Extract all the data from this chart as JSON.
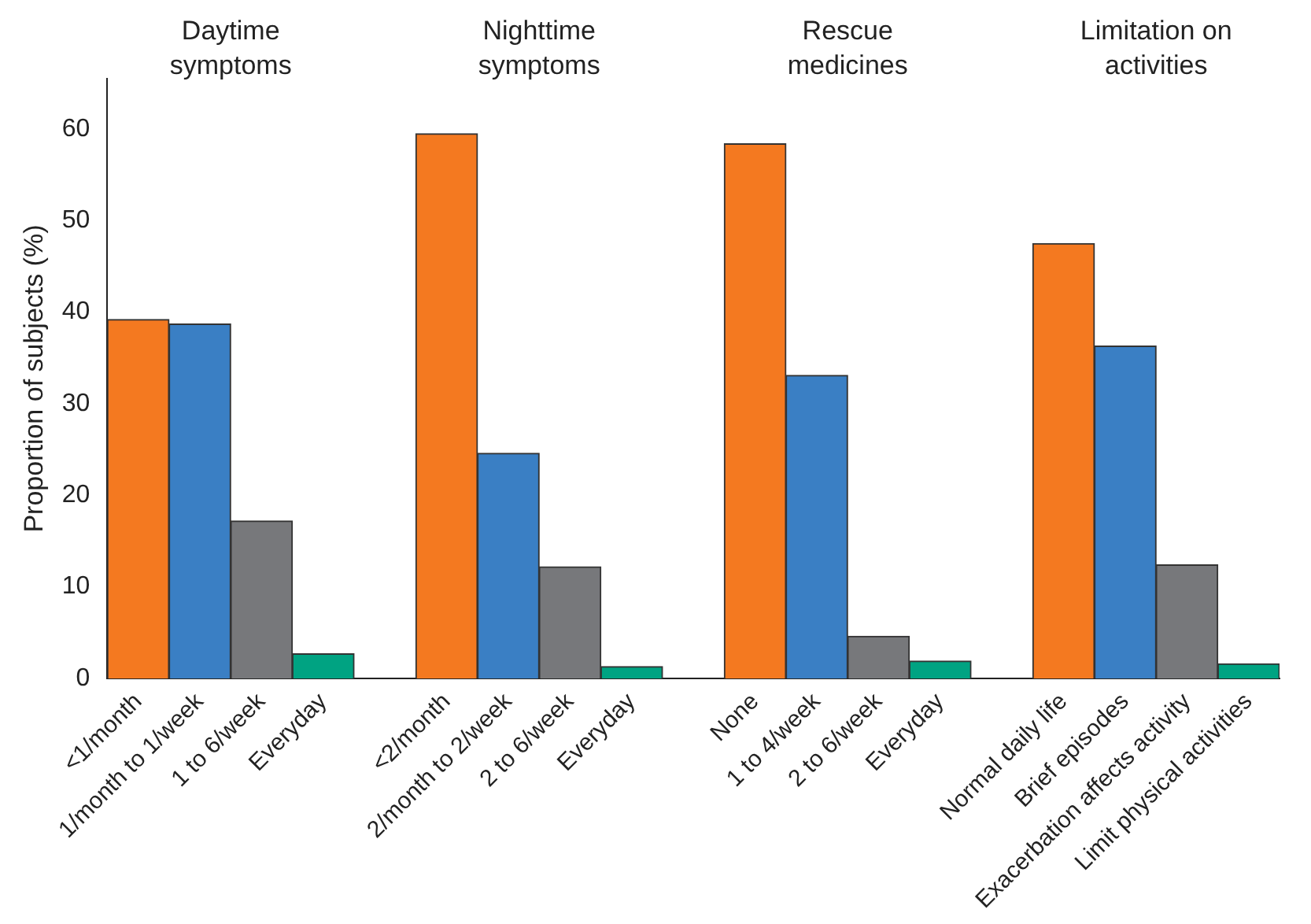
{
  "chart_data": {
    "type": "bar",
    "ylabel": "Proportion of subjects (%)",
    "categories": [
      "<1/month",
      "1/month to 1/week",
      "1 to 6/week",
      "Everyday",
      null,
      "<2/month",
      "2/month to 2/week",
      "2 to 6/week",
      "Everyday",
      null,
      "None",
      "1 to 4/week",
      "2 to 6/week",
      "Everyday",
      null,
      "Normal daily life",
      "Brief episodes",
      "Exacerbation affects activity",
      "Limit physical activities"
    ],
    "values": [
      39.2,
      38.7,
      17.2,
      2.7,
      null,
      59.5,
      24.6,
      12.2,
      1.3,
      null,
      58.4,
      33.1,
      4.6,
      1.9,
      null,
      47.5,
      36.3,
      12.4,
      1.6
    ],
    "colors": [
      "#f47920",
      "#3a7fc4",
      "#77787b",
      "#00a382",
      null,
      "#f47920",
      "#3a7fc4",
      "#77787b",
      "#00a382",
      null,
      "#f47920",
      "#3a7fc4",
      "#77787b",
      "#00a382",
      null,
      "#f47920",
      "#3a7fc4",
      "#77787b",
      "#00a382"
    ],
    "ylim": [
      0,
      65.5
    ],
    "yticks": [
      0,
      10,
      20,
      30,
      40,
      50,
      60
    ],
    "grid": false,
    "legend": false,
    "annotations": [
      "Daytime symptoms",
      "Nighttime symptoms",
      "Rescue medicines",
      "Limitation on activities"
    ]
  }
}
